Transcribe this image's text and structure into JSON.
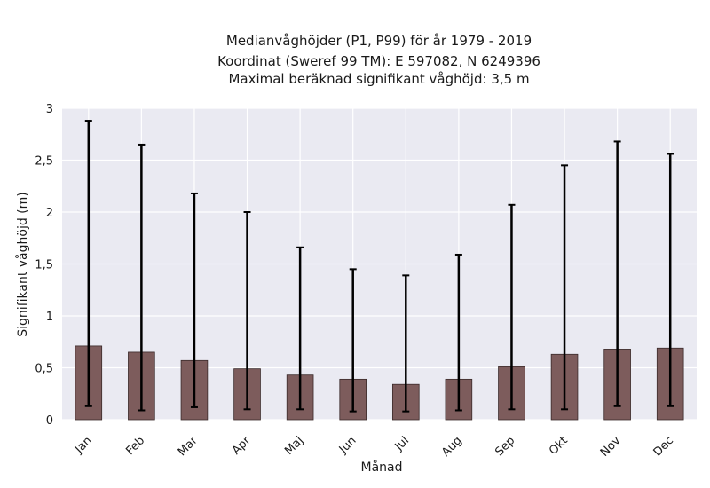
{
  "chart_data": {
    "type": "bar",
    "title_lines": [
      "Medianvåghöjder (P1, P99) för år 1979 - 2019",
      "Koordinat (Sweref 99 TM): E 597082, N 6249396",
      "Maximal beräknad signifikant våghöjd: 3,5 m"
    ],
    "xlabel": "Månad",
    "ylabel": "Signifikant våghöjd (m)",
    "categories": [
      "Jan",
      "Feb",
      "Mar",
      "Apr",
      "Maj",
      "Jun",
      "Jul",
      "Aug",
      "Sep",
      "Okt",
      "Nov",
      "Dec"
    ],
    "series": [
      {
        "values": [
          0.71,
          0.65,
          0.57,
          0.49,
          0.43,
          0.39,
          0.34,
          0.39,
          0.51,
          0.63,
          0.68,
          0.69
        ],
        "p1": [
          0.13,
          0.09,
          0.12,
          0.1,
          0.1,
          0.08,
          0.08,
          0.09,
          0.1,
          0.1,
          0.13,
          0.13
        ],
        "p99": [
          2.88,
          2.65,
          2.18,
          2.0,
          1.66,
          1.45,
          1.39,
          1.59,
          2.07,
          2.45,
          2.68,
          2.56
        ]
      }
    ],
    "ylim": [
      0,
      3
    ],
    "yticks": [
      0,
      0.5,
      1,
      1.5,
      2,
      2.5,
      3
    ],
    "ytick_labels": [
      "0",
      "0,5",
      "1",
      "1,5",
      "2",
      "2,5",
      "3"
    ],
    "grid": true,
    "legend": "none",
    "colors": {
      "bar": "#7d5c5c",
      "bar_edge": "#3a2a2a",
      "error_bar": "#000000",
      "plot_background": "#eaeaf2",
      "grid": "#ffffff"
    }
  }
}
